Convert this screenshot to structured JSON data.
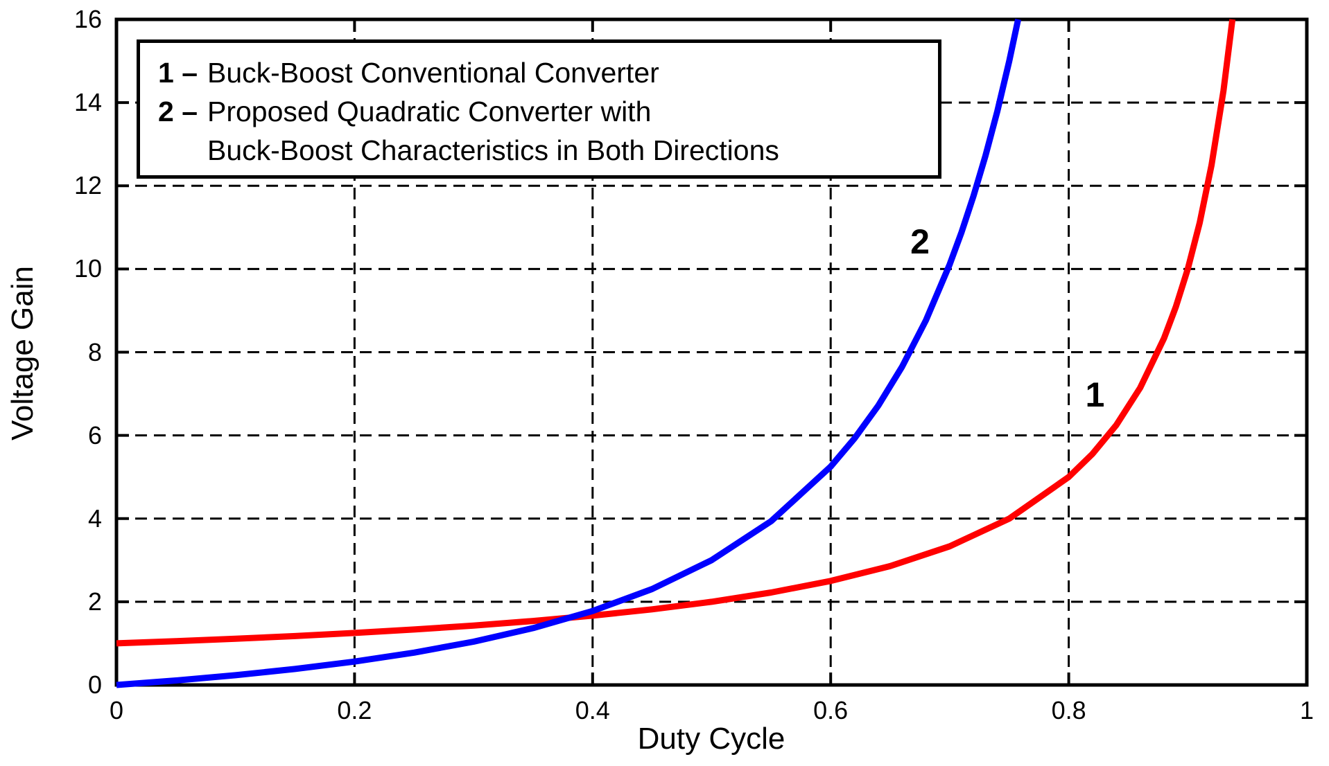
{
  "chart_data": {
    "type": "line",
    "title": "",
    "xlabel": "Duty Cycle",
    "ylabel": "Voltage Gain",
    "xlim": [
      0,
      1
    ],
    "ylim": [
      0,
      16
    ],
    "x_ticks": [
      0,
      0.2,
      0.4,
      0.6,
      0.8,
      1
    ],
    "x_tick_labels": [
      "0",
      "0.2",
      "0.4",
      "0.6",
      "0.8",
      "1"
    ],
    "y_ticks": [
      0,
      2,
      4,
      6,
      8,
      10,
      12,
      14,
      16
    ],
    "y_tick_labels": [
      "0",
      "2",
      "4",
      "6",
      "8",
      "10",
      "12",
      "14",
      "16"
    ],
    "grid": "dashed",
    "legend_position": "top-left",
    "series": [
      {
        "name": "Buck-Boost Conventional Converter",
        "plot_label": "1",
        "color": "#ff0000",
        "x": [
          0,
          0.05,
          0.1,
          0.15,
          0.2,
          0.25,
          0.3,
          0.35,
          0.4,
          0.45,
          0.5,
          0.55,
          0.6,
          0.65,
          0.7,
          0.75,
          0.8,
          0.82,
          0.84,
          0.86,
          0.88,
          0.89,
          0.9,
          0.91,
          0.92,
          0.93,
          0.9375
        ],
        "y": [
          1.0,
          1.053,
          1.111,
          1.176,
          1.25,
          1.333,
          1.429,
          1.538,
          1.667,
          1.818,
          2.0,
          2.222,
          2.5,
          2.857,
          3.333,
          4.0,
          5.0,
          5.556,
          6.25,
          7.143,
          8.333,
          9.091,
          10.0,
          11.111,
          12.5,
          14.286,
          16.0
        ]
      },
      {
        "name": "Proposed Quadratic Converter with Buck-Boost Characteristics in Both Directions",
        "plot_label": "2",
        "color": "#0000ff",
        "x": [
          0,
          0.05,
          0.1,
          0.15,
          0.2,
          0.25,
          0.3,
          0.35,
          0.4,
          0.45,
          0.5,
          0.55,
          0.6,
          0.62,
          0.64,
          0.66,
          0.68,
          0.7,
          0.71,
          0.72,
          0.73,
          0.74,
          0.75,
          0.7575
        ],
        "y": [
          0,
          0.108,
          0.235,
          0.384,
          0.563,
          0.778,
          1.041,
          1.367,
          1.778,
          2.306,
          3.0,
          3.938,
          5.25,
          5.925,
          6.716,
          7.651,
          8.766,
          10.111,
          10.891,
          11.755,
          12.717,
          13.793,
          15.0,
          16.0
        ]
      }
    ],
    "annotations": [
      {
        "label": "2",
        "x": 0.675,
        "y": 10.65
      },
      {
        "label": "1",
        "x": 0.822,
        "y": 6.98
      }
    ]
  },
  "legend": {
    "items": [
      {
        "marker": "1 –",
        "text": "Buck-Boost Conventional Converter"
      },
      {
        "marker": "2 –",
        "text": "Proposed Quadratic Converter with"
      },
      {
        "marker": "",
        "text": "Buck-Boost Characteristics in Both Directions"
      }
    ]
  }
}
